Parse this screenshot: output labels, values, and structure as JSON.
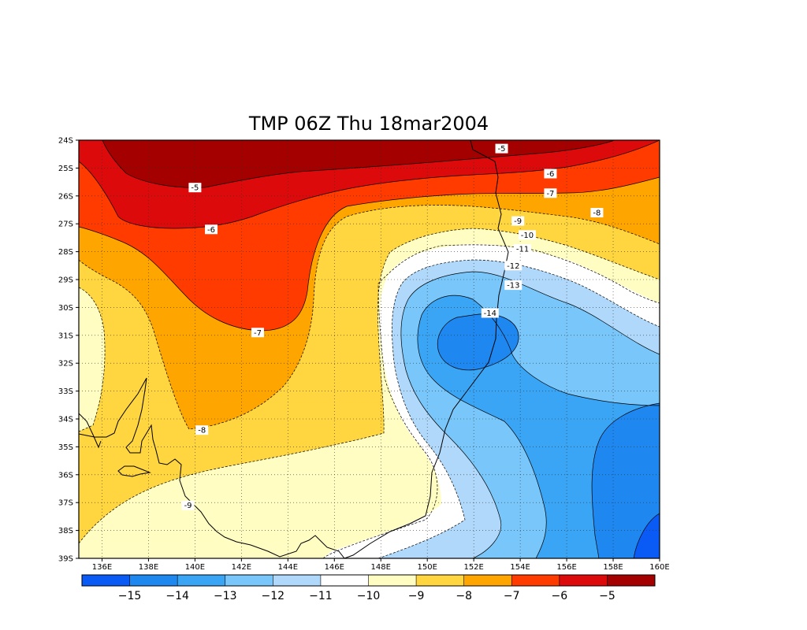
{
  "chart_data": {
    "type": "contour-map",
    "title": "TMP 06Z Thu 18mar2004",
    "variable": "TMP",
    "lon_range": [
      135,
      160
    ],
    "lat_range": [
      -39,
      -24
    ],
    "x_ticks": [
      "136E",
      "138E",
      "140E",
      "142E",
      "144E",
      "146E",
      "148E",
      "150E",
      "152E",
      "154E",
      "156E",
      "158E",
      "160E"
    ],
    "y_ticks": [
      "24S",
      "25S",
      "26S",
      "27S",
      "28S",
      "29S",
      "30S",
      "31S",
      "32S",
      "33S",
      "34S",
      "35S",
      "36S",
      "37S",
      "38S",
      "39S"
    ],
    "grid": "dotted",
    "colorbar": {
      "placement": "bottom",
      "levels": [
        -15,
        -14,
        -13,
        -12,
        -11,
        -10,
        -9,
        -8,
        -7,
        -6,
        -5
      ],
      "labels": [
        "-15",
        "-14",
        "-13",
        "-12",
        "-11",
        "-10",
        "-9",
        "-8",
        "-7",
        "-6",
        "-5"
      ],
      "colors": [
        "#0a5af5",
        "#1e87f0",
        "#3aa5f5",
        "#79c7fa",
        "#b0d8fa",
        "#ffffff",
        "#fffdc1",
        "#ffd540",
        "#ffa500",
        "#ff3b00",
        "#dc0a0a",
        "#a50000"
      ]
    },
    "contour_labels": [
      {
        "text": "-5",
        "lon": 153.2,
        "lat": -24.3
      },
      {
        "text": "-5",
        "lon": 140,
        "lat": -25.7
      },
      {
        "text": "-6",
        "lon": 155.3,
        "lat": -25.2
      },
      {
        "text": "-6",
        "lon": 140.7,
        "lat": -27.2
      },
      {
        "text": "-7",
        "lon": 155.3,
        "lat": -25.9
      },
      {
        "text": "-7",
        "lon": 142.7,
        "lat": -30.9
      },
      {
        "text": "-8",
        "lon": 157.3,
        "lat": -26.6
      },
      {
        "text": "-8",
        "lon": 140.3,
        "lat": -34.4
      },
      {
        "text": "-9",
        "lon": 153.9,
        "lat": -26.9
      },
      {
        "text": "-9",
        "lon": 139.7,
        "lat": -37.1
      },
      {
        "text": "-10",
        "lon": 154.3,
        "lat": -27.4
      },
      {
        "text": "-11",
        "lon": 154.1,
        "lat": -27.9
      },
      {
        "text": "-12",
        "lon": 153.7,
        "lat": -28.5
      },
      {
        "text": "-13",
        "lon": 153.7,
        "lat": -29.2
      },
      {
        "text": "-14",
        "lon": 152.7,
        "lat": -30.2
      }
    ]
  }
}
